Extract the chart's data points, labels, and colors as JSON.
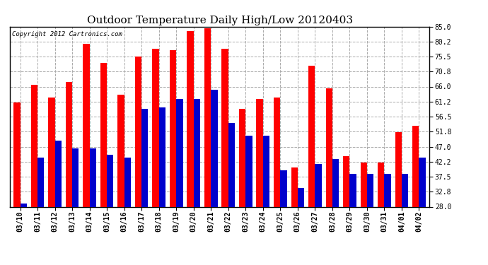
{
  "title": "Outdoor Temperature Daily High/Low 20120403",
  "copyright": "Copyright 2012 Cartronics.com",
  "dates": [
    "03/10",
    "03/11",
    "03/12",
    "03/13",
    "03/14",
    "03/15",
    "03/16",
    "03/17",
    "03/18",
    "03/19",
    "03/20",
    "03/21",
    "03/22",
    "03/23",
    "03/24",
    "03/25",
    "03/26",
    "03/27",
    "03/28",
    "03/29",
    "03/30",
    "03/31",
    "04/01",
    "04/02"
  ],
  "highs": [
    61.0,
    66.5,
    62.5,
    67.5,
    79.5,
    73.5,
    63.5,
    75.5,
    78.0,
    77.5,
    83.5,
    84.5,
    78.0,
    59.0,
    62.0,
    62.5,
    40.5,
    72.5,
    65.5,
    44.0,
    42.0,
    42.0,
    51.5,
    53.5
  ],
  "lows": [
    29.0,
    43.5,
    49.0,
    46.5,
    46.5,
    44.5,
    43.5,
    59.0,
    59.5,
    62.0,
    62.0,
    65.0,
    54.5,
    50.5,
    50.5,
    39.5,
    34.0,
    41.5,
    43.0,
    38.5,
    38.5,
    38.5,
    38.5,
    43.5
  ],
  "high_color": "#ff0000",
  "low_color": "#0000cc",
  "bg_color": "#ffffff",
  "grid_color": "#aaaaaa",
  "title_fontsize": 11,
  "yticks": [
    28.0,
    32.8,
    37.5,
    42.2,
    47.0,
    51.8,
    56.5,
    61.2,
    66.0,
    70.8,
    75.5,
    80.2,
    85.0
  ],
  "ylim_min": 28.0,
  "ylim_max": 85.0,
  "bar_width": 0.38,
  "tick_fontsize": 7,
  "copyright_fontsize": 6.5
}
